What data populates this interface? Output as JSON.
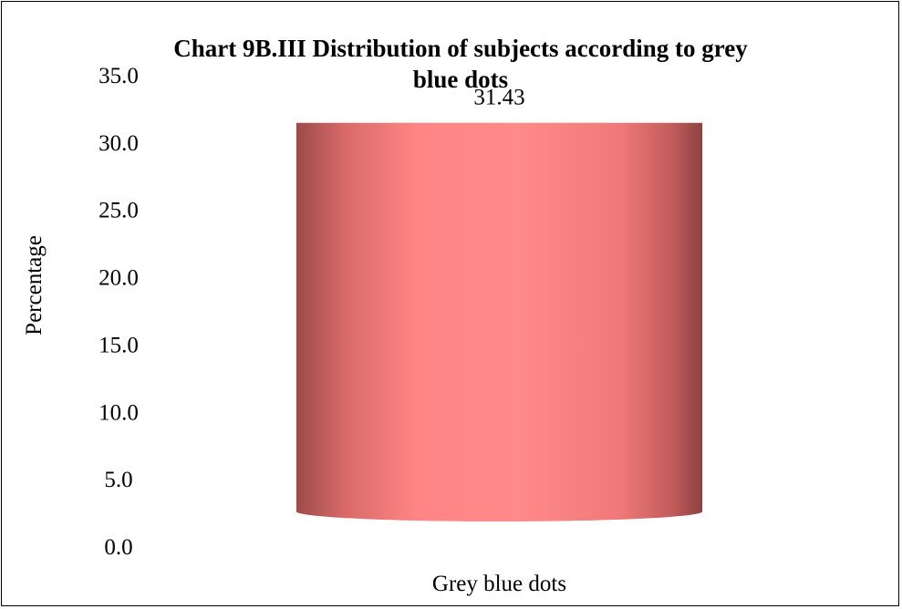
{
  "chart_data": {
    "type": "bar",
    "title_lines": [
      "Chart 9B.III Distribution of subjects according to grey",
      "blue dots"
    ],
    "categories": [
      "Grey blue dots"
    ],
    "values": [
      31.43
    ],
    "data_labels": [
      "31.43"
    ],
    "ylabel": "Percentage",
    "xlabel": "",
    "ylim": [
      0,
      35
    ],
    "yticks": [
      "0.0",
      "5.0",
      "10.0",
      "15.0",
      "20.0",
      "25.0",
      "30.0",
      "35.0"
    ],
    "bar_style": "cylinder",
    "bar_color": "#ff8080",
    "grid": false,
    "legend": "none"
  }
}
